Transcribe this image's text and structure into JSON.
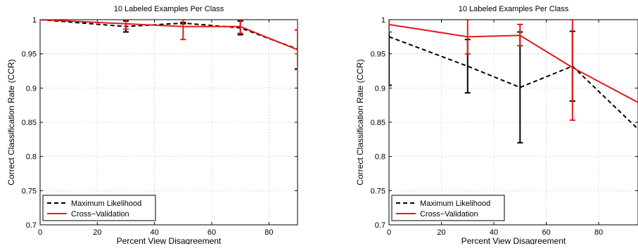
{
  "chart_data": [
    {
      "type": "line",
      "title": "10 Labeled Examples Per Class",
      "xlabel": "Percent View Disagreement",
      "ylabel": "Correct Classification Rate (CCR)",
      "xlim": [
        0,
        90
      ],
      "ylim": [
        0.7,
        1.0
      ],
      "xticks": [
        0,
        20,
        40,
        60,
        80
      ],
      "yticks": [
        0.7,
        0.75,
        0.8,
        0.85,
        0.9,
        0.95,
        1.0
      ],
      "ytick_labels": [
        "0.7",
        "0.75",
        "0.8",
        "0.85",
        "0.9",
        "0.95",
        "1"
      ],
      "grid": true,
      "legend": "bottom-left",
      "series": [
        {
          "name": "Maximum Likelihood",
          "color": "#000000",
          "style": "dashed",
          "x": [
            0,
            30,
            50,
            70,
            90
          ],
          "y": [
            1.0,
            0.99,
            0.995,
            0.988,
            0.957
          ],
          "err_low": [
            1.0,
            0.982,
            0.994,
            0.978,
            0.928
          ],
          "err_high": [
            1.0,
            0.998,
            0.996,
            0.998,
            0.985
          ]
        },
        {
          "name": "Cross−Validation",
          "color": "#e41a1c",
          "style": "solid",
          "x": [
            0,
            30,
            50,
            70,
            90
          ],
          "y": [
            1.0,
            0.994,
            0.99,
            0.99,
            0.956
          ],
          "err_low": [
            1.0,
            0.986,
            0.971,
            0.98,
            0.927
          ],
          "err_high": [
            1.0,
            1.0,
            1.0,
            1.0,
            0.985
          ]
        }
      ]
    },
    {
      "type": "line",
      "title": "10 Labeled Examples Per Class",
      "xlabel": "Percent View Disagreement",
      "ylabel": "Correct Classification Rate (CCR)",
      "xlim": [
        0,
        95
      ],
      "ylim": [
        0.7,
        1.0
      ],
      "xticks": [
        0,
        20,
        40,
        60,
        80
      ],
      "yticks": [
        0.7,
        0.75,
        0.8,
        0.85,
        0.9,
        0.95,
        1.0
      ],
      "ytick_labels": [
        "0.7",
        "0.75",
        "0.8",
        "0.85",
        "0.9",
        "0.95",
        "1"
      ],
      "grid": true,
      "legend": "bottom-left",
      "series": [
        {
          "name": "Maximum Likelihood",
          "color": "#000000",
          "style": "dashed",
          "x": [
            0,
            30,
            50,
            70,
            95
          ],
          "y": [
            0.975,
            0.932,
            0.901,
            0.932,
            0.84
          ],
          "err_low": [
            0.904,
            0.893,
            0.82,
            0.881,
            null
          ],
          "err_high": [
            1.0,
            0.971,
            0.982,
            0.983,
            null
          ]
        },
        {
          "name": "Cross−Validation",
          "color": "#e41a1c",
          "style": "solid",
          "x": [
            0,
            30,
            50,
            70,
            95
          ],
          "y": [
            0.993,
            0.975,
            0.977,
            0.93,
            0.879
          ],
          "err_low": [
            0.982,
            0.95,
            0.962,
            0.853,
            null
          ],
          "err_high": [
            1.0,
            1.0,
            0.993,
            1.0,
            null
          ]
        }
      ]
    }
  ]
}
